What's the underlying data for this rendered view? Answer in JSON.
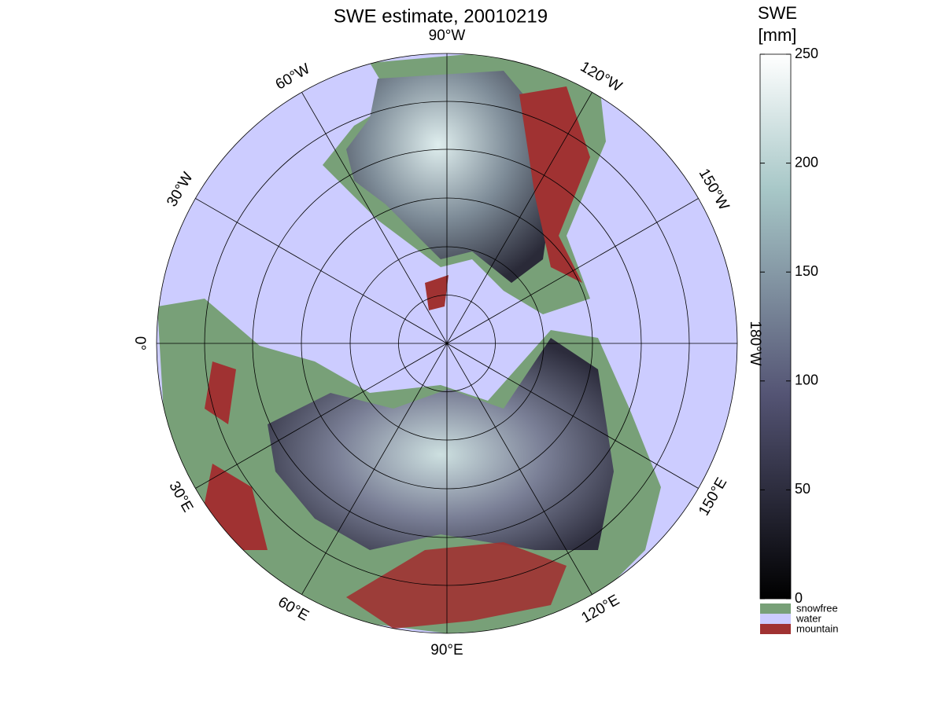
{
  "title": "SWE estimate, 20010219",
  "meridian_labels": [
    "90°W",
    "120°W",
    "150°W",
    "180°W",
    "150°E",
    "120°E",
    "90°E",
    "60°E",
    "30°E",
    "0°",
    "30°W",
    "60°W"
  ],
  "colorbar": {
    "label": [
      "SWE",
      "[mm]"
    ],
    "ylim": [
      0,
      250
    ],
    "yticks": [
      0,
      50,
      100,
      150,
      200,
      250
    ]
  },
  "classes": [
    {
      "name": "snowfree",
      "color": "#78a078"
    },
    {
      "name": "water",
      "color": "#ccccff"
    },
    {
      "name": "mountain",
      "color": "#a03232"
    }
  ]
}
